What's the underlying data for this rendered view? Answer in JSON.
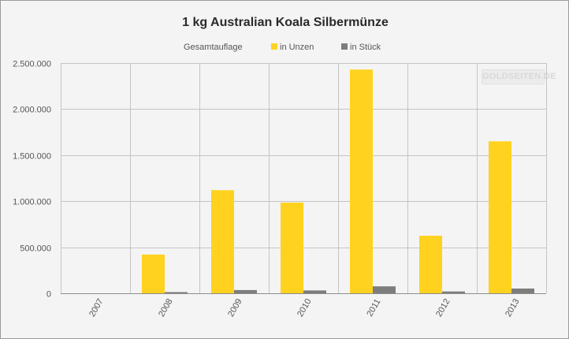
{
  "chart_data": {
    "type": "bar",
    "title": "1 kg Australian Koala Silbermünze",
    "legend_title": "Gesamtauflage",
    "legend_position": "top-center",
    "categories": [
      "2007",
      "2008",
      "2009",
      "2010",
      "2011",
      "2012",
      "2013"
    ],
    "series": [
      {
        "name": "in Unzen",
        "color": "#ffd21f",
        "values": [
          0,
          420000,
          1120000,
          985000,
          2430000,
          625000,
          1650000
        ]
      },
      {
        "name": "in Stück",
        "color": "#7d7d7d",
        "values": [
          0,
          13000,
          35000,
          30600,
          75600,
          19500,
          51400
        ]
      }
    ],
    "ylim": [
      0,
      2500000
    ],
    "yticks": [
      0,
      500000,
      1000000,
      1500000,
      2000000,
      2500000
    ],
    "ytick_labels": [
      "0",
      "500.000",
      "1.000.000",
      "1.500.000",
      "2.000.000",
      "2.500.000"
    ],
    "xlabel": "",
    "ylabel": "",
    "grid": true
  },
  "watermark": "GOLDSEITEN.DE"
}
